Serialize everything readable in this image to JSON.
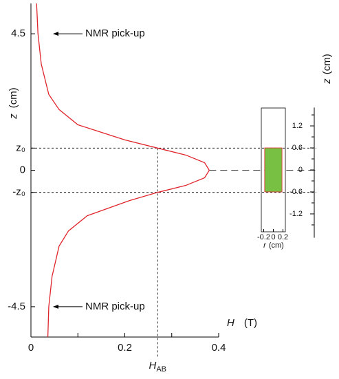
{
  "chart_data": {
    "type": "line",
    "z": [
      5.5,
      4.5,
      3.5,
      2.5,
      2,
      1.5,
      1,
      0.73,
      0.5,
      0.25,
      0,
      -0.25,
      -0.5,
      -0.73,
      -1,
      -1.5,
      -2,
      -2.5,
      -3.5,
      -4.5,
      -5.5
    ],
    "values": [
      0.012,
      0.015,
      0.022,
      0.038,
      0.06,
      0.1,
      0.2,
      0.27,
      0.33,
      0.37,
      0.38,
      0.37,
      0.33,
      0.27,
      0.21,
      0.12,
      0.08,
      0.06,
      0.045,
      0.038,
      0.036
    ],
    "color": "#e0242b",
    "xlabel": "H",
    "xunit": "(T)",
    "ylabel": "z",
    "yunit": "(cm)",
    "xlim": [
      0,
      0.4
    ],
    "xticks": [
      0,
      0.2,
      0.4
    ],
    "minor_xticks": [
      0.1,
      0.3
    ],
    "ylim": [
      -5.5,
      5.5
    ],
    "yticks": [
      4.5,
      {
        "value": 0.73,
        "label": "z₀"
      },
      0,
      {
        "value": -0.73,
        "label": "-z₀"
      },
      -4.5
    ],
    "marker": {
      "value": 0.27,
      "symbol": "H",
      "subscript": "AB"
    },
    "annotations": [
      {
        "text": "NMR pick-up",
        "z": 4.5
      },
      {
        "text": "NMR pick-up",
        "z": -4.5
      }
    ],
    "inset": {
      "ylabel": "z",
      "yunit": "(cm)",
      "xlabel": "r",
      "xunit": "(cm)",
      "ylim": [
        -1.85,
        1.7
      ],
      "yticks": [
        1.2,
        0.6,
        0,
        -0.6,
        -1.2
      ],
      "minor_yticks": [
        1.5,
        0.9,
        0.3,
        -0.3,
        -0.9,
        -1.5
      ],
      "xlim": [
        -0.25,
        0.25
      ],
      "xticks": [
        -0.2,
        0,
        0.2
      ],
      "sample_r": [
        -0.18,
        0.18
      ],
      "sample_z": [
        -0.6,
        0.6
      ],
      "sample_color": "#77c043"
    }
  }
}
